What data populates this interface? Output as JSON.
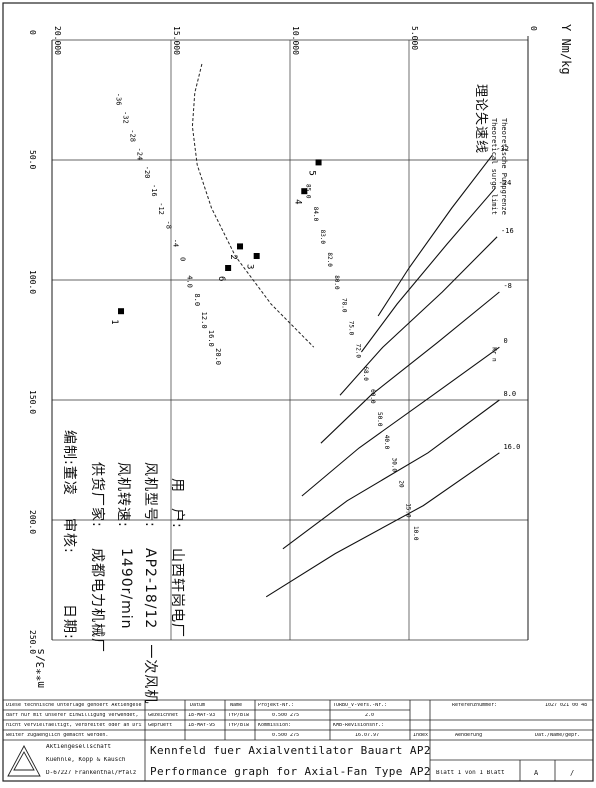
{
  "chart_data": {
    "type": "line",
    "title": "Kennfeld fuer Axialventilator Bauart AP2",
    "subtitle": "Performance graph for Axial-Fan Type AP2",
    "xlabel": "m**3/s",
    "ylabel": "Y Nm/kg",
    "x_ticks": [
      "0",
      "50.0",
      "100.0",
      "150.0",
      "200.0",
      "250.0"
    ],
    "y_ticks": [
      "0",
      "5.000",
      "10.000",
      "15.000",
      "20.000"
    ],
    "xlim": [
      0,
      250
    ],
    "ylim": [
      0,
      20000
    ],
    "grid": true,
    "surge_limit_label_de": "Theoretische Pumpgrenze",
    "surge_limit_label_en": "Theoretical surge limit",
    "surge_limit_label_cn": "理论失速线",
    "surge_limit": {
      "x": [
        10,
        22,
        36,
        52,
        70,
        90,
        110,
        128
      ],
      "y": [
        13700,
        14000,
        14100,
        13900,
        13300,
        12300,
        10800,
        9000
      ]
    },
    "blade_angle_labels": [
      "-36",
      "-32",
      "-28",
      "-24",
      "-20",
      "-16",
      "-12",
      "-8",
      "-4",
      "0",
      "4.0",
      "8.0",
      "12.0",
      "16.0",
      "20.0"
    ],
    "blade_angle_lines": [
      {
        "label": "-32",
        "x": [
          48,
          70,
          95,
          115
        ],
        "y": [
          1500,
          3200,
          5000,
          6300
        ]
      },
      {
        "label": "-24",
        "x": [
          62,
          85,
          110,
          130
        ],
        "y": [
          1400,
          3400,
          5500,
          7000
        ]
      },
      {
        "label": "-16",
        "x": [
          82,
          105,
          128,
          148
        ],
        "y": [
          1300,
          3600,
          6100,
          7900
        ]
      },
      {
        "label": "-8",
        "x": [
          105,
          126,
          148,
          168
        ],
        "y": [
          1200,
          3800,
          6600,
          8700
        ]
      },
      {
        "label": "0",
        "x": [
          128,
          148,
          170,
          190
        ],
        "y": [
          1200,
          4000,
          7100,
          9500
        ]
      },
      {
        "label": "8.0",
        "x": [
          150,
          172,
          192,
          212
        ],
        "y": [
          1200,
          4200,
          7600,
          10300
        ]
      },
      {
        "label": "16.0",
        "x": [
          172,
          194,
          214,
          232
        ],
        "y": [
          1200,
          4400,
          8100,
          11000
        ]
      }
    ],
    "efficiency_labels": [
      "85.0",
      "84.0",
      "83.0",
      "82.0",
      "80.0",
      "78.0",
      "75.0",
      "72.0",
      "68.0",
      "60.0",
      "50.0",
      "40.0",
      "30.0",
      "20",
      "15.0",
      "10.0"
    ],
    "operating_points": [
      {
        "label": "1",
        "x": 113,
        "y": 17100
      },
      {
        "label": "2",
        "x": 86,
        "y": 12100
      },
      {
        "label": "3",
        "x": 90,
        "y": 11400
      },
      {
        "label": "4",
        "x": 63,
        "y": 9400
      },
      {
        "label": "5",
        "x": 51,
        "y": 8800
      },
      {
        "label": "6",
        "x": 95,
        "y": 12600
      }
    ],
    "operating_point_label": "Kr n",
    "customer_label": "用　户:",
    "customer": "山西轩岗电厂",
    "model_label": "风机型号:",
    "model": "AP2-18/12　一次风机",
    "speed_label": "风机转速:",
    "speed": "1490r/min",
    "supplier_label": "供货厂家:",
    "supplier": "成都电力机械厂",
    "prepared_label": "编制:",
    "prepared": "董凌",
    "checked_label": "审核:",
    "date_label": "日期:"
  },
  "title_block": {
    "legal_1": "Diese technische Unterlage gehoert Aktiengesellschaft und",
    "legal_2": "darf nur mit unserer Einwilligung verwendet, insbesondere",
    "legal_3": "nicht vervielfaeltigt, verbreitet oder an Dritte",
    "legal_4": "weiter zugaenglich gemacht werden.",
    "col_datum": "Datum",
    "col_name": "Name",
    "col_projekt": "Projekt-Nr.:",
    "col_turbo": "TURBO_V-Vers.-Nr.:",
    "col_referenz": "Referenznummer:",
    "ref_number": "1027 021 00 48",
    "row_gezeichnet": "Gezeichnet",
    "row_geprueft": "Geprueft",
    "date_1": "18-MAY-93",
    "date_2": "18-MAY-95",
    "name_1": "TYP/Blw",
    "name_2": "TYP/Blw",
    "projekt_value": "0.500 275",
    "turbo_value": "2.0",
    "kommission_label": "Kommission:",
    "kommission_value": "0.500 275",
    "kmb_label": "KMB-Revisionsnr.:",
    "kmb_value": "16.07.97",
    "index_label": "Index",
    "aenderung_label": "Aenderung",
    "dat_label": "Dat./Name/gepr.",
    "company": "Aktiengesellschaft",
    "company_2": "Kuehnle, Kopp & Kausch",
    "company_3": "D-67227 Frankenthal/Pfalz",
    "blatt": "Blatt 1 von 1 Blatt",
    "format": "A",
    "slash": "/"
  }
}
